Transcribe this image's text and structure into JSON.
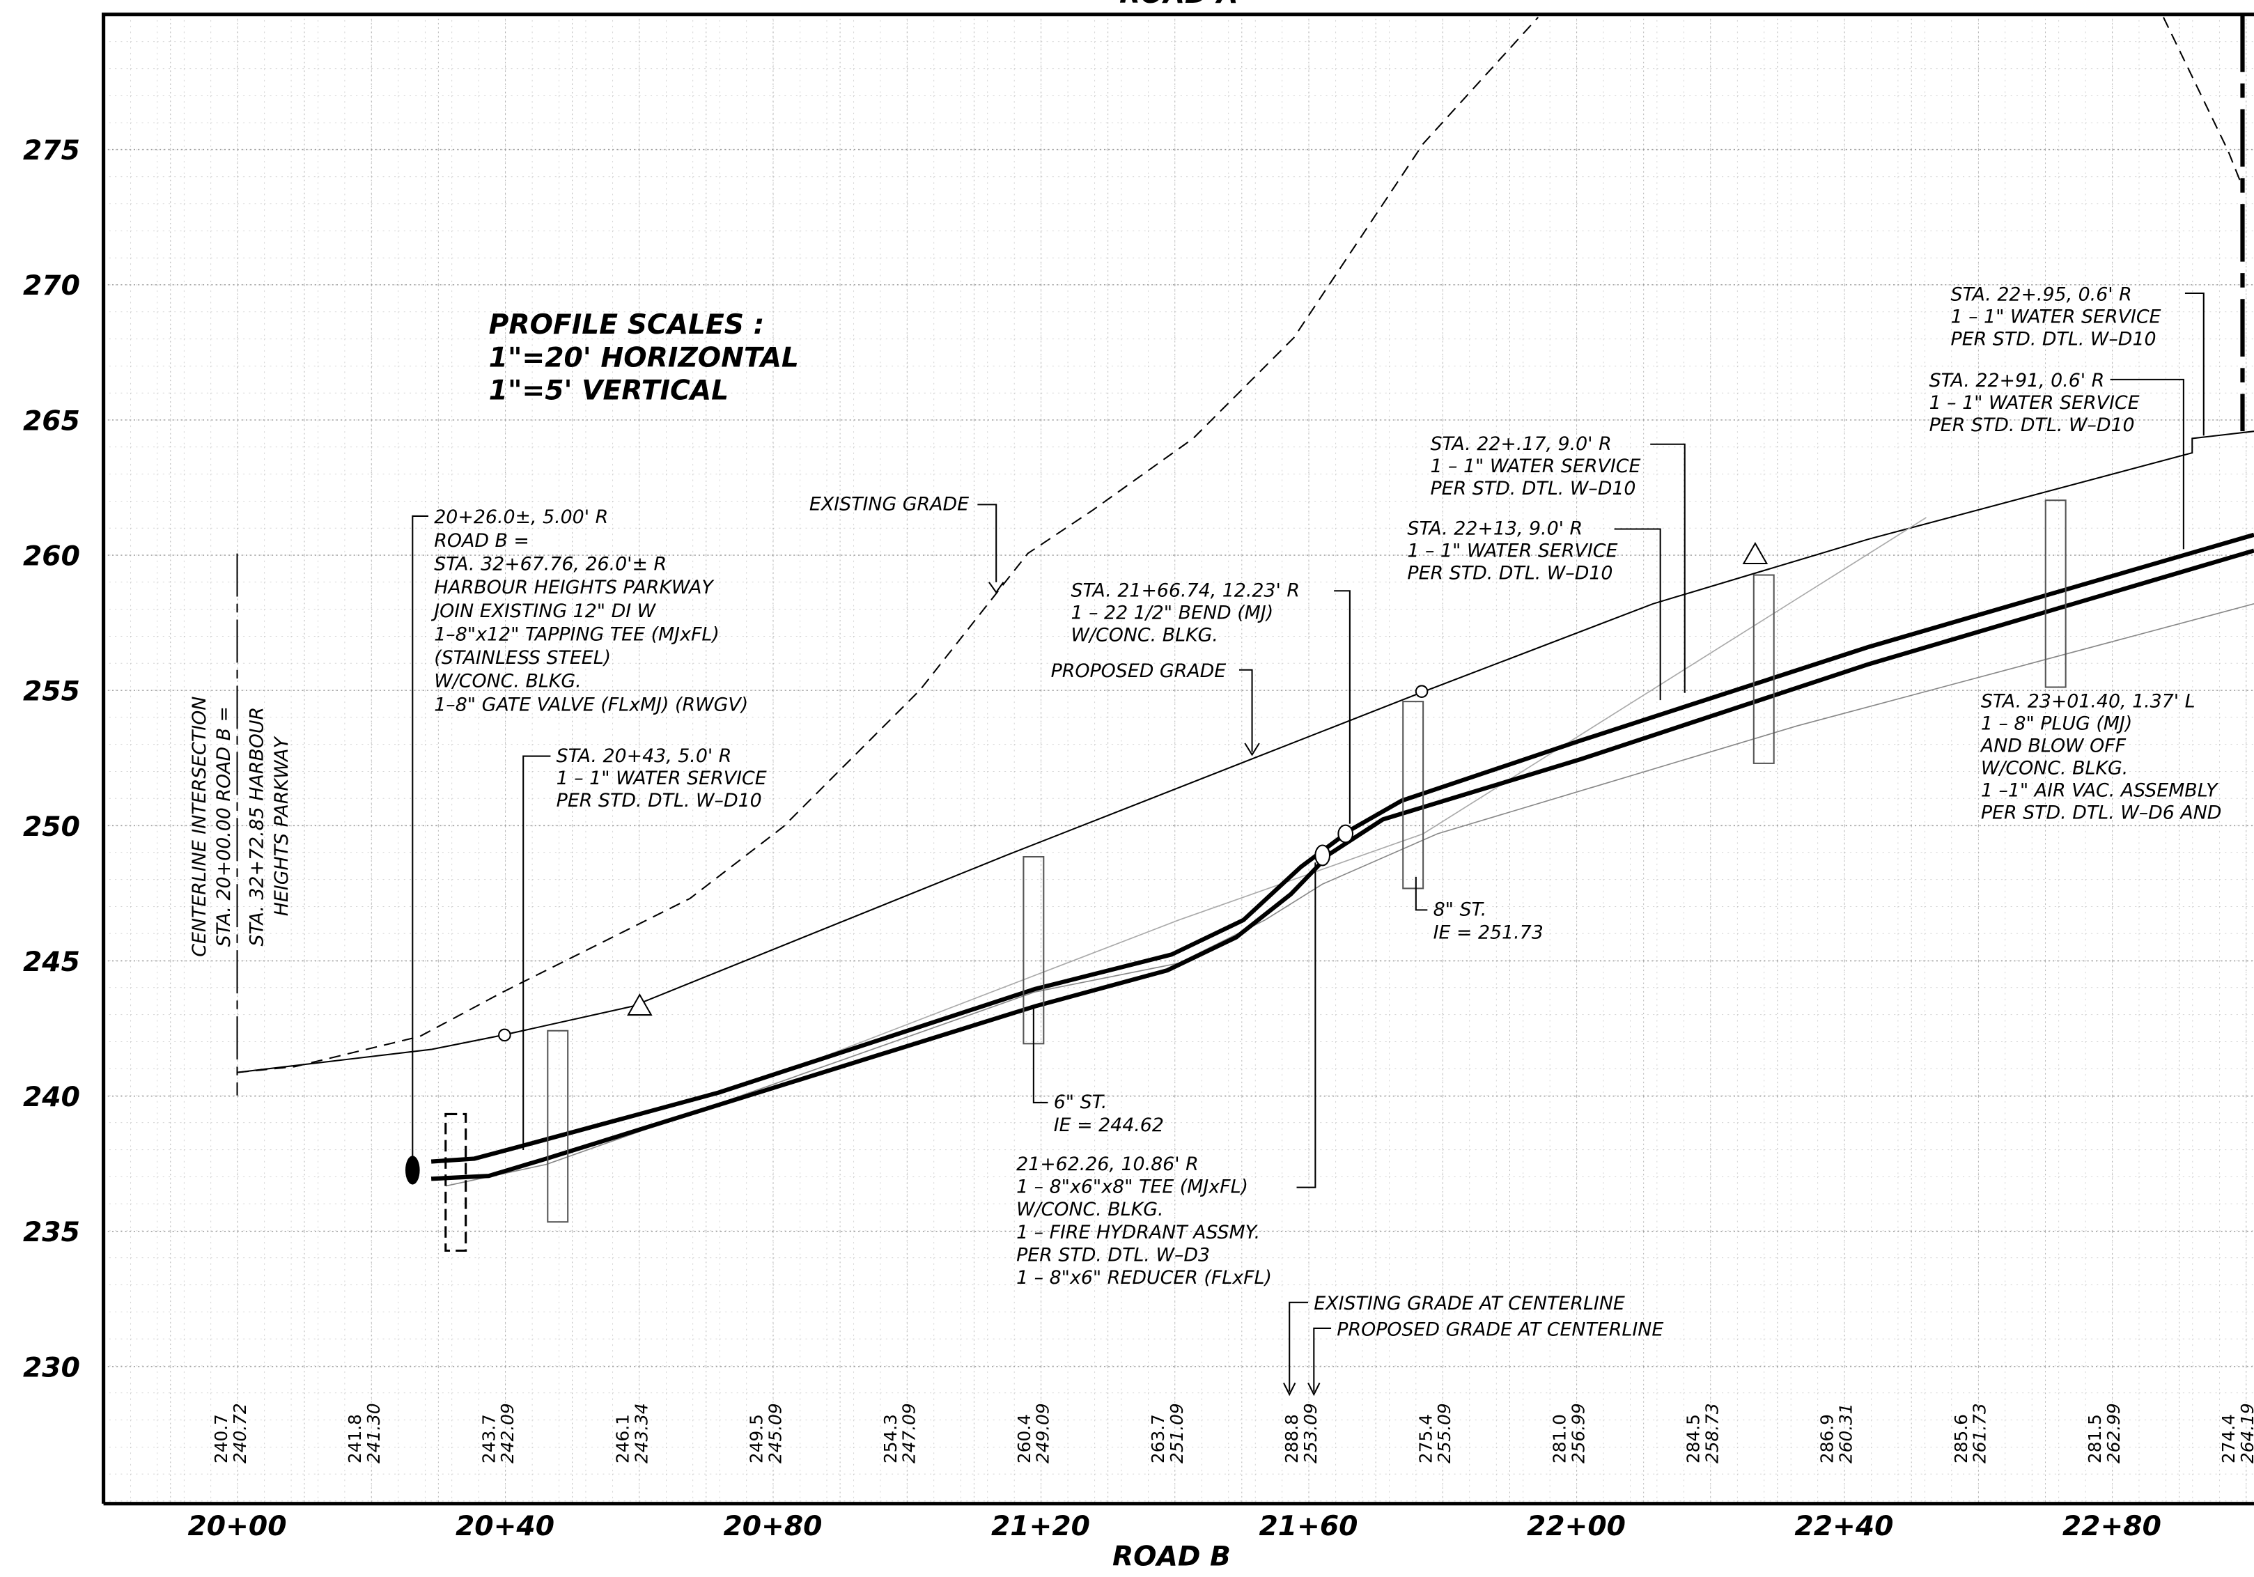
{
  "top_title": "ROAD A",
  "scale_note": [
    "PROFILE SCALES :",
    "1\"=20' HORIZONTAL",
    "1\"=5' VERTICAL"
  ],
  "elevations": [
    275,
    270,
    265,
    260,
    255,
    250,
    245,
    240,
    235,
    230
  ],
  "stations": [
    "20+00",
    "20+40",
    "20+80",
    "21+20",
    "21+60",
    "22+00",
    "22+40",
    "22+80"
  ],
  "x_axis_title": "ROAD B",
  "grade_readings": [
    {
      "existing": "240.7",
      "proposed": "240.72"
    },
    {
      "existing": "241.8",
      "proposed": "241.30"
    },
    {
      "existing": "243.7",
      "proposed": "242.09"
    },
    {
      "existing": "246.1",
      "proposed": "243.34"
    },
    {
      "existing": "249.5",
      "proposed": "245.09"
    },
    {
      "existing": "254.3",
      "proposed": "247.09"
    },
    {
      "existing": "260.4",
      "proposed": "249.09"
    },
    {
      "existing": "263.7",
      "proposed": "251.09"
    },
    {
      "existing": "288.8",
      "proposed": "253.09"
    },
    {
      "existing": "275.4",
      "proposed": "255.09"
    },
    {
      "existing": "281.0",
      "proposed": "256.99"
    },
    {
      "existing": "284.5",
      "proposed": "258.73"
    },
    {
      "existing": "286.9",
      "proposed": "260.31"
    },
    {
      "existing": "285.6",
      "proposed": "261.73"
    },
    {
      "existing": "281.5",
      "proposed": "262.99"
    },
    {
      "existing": "274.4",
      "proposed": "264.19"
    }
  ],
  "annotations": {
    "centerline": [
      "CENTERLINE INTERSECTION",
      "STA. 20+00.00 ROAD B =",
      "STA. 32+72.85 HARBOUR",
      "HEIGHTS PARKWAY"
    ],
    "tap": [
      "20+26.0±, 5.00' R",
      "ROAD B =",
      "STA. 32+67.76, 26.0'± R",
      "HARBOUR HEIGHTS PARKWAY",
      "JOIN EXISTING 12\" DI W",
      "1–8\"x12\" TAPPING TEE (MJxFL)",
      "(STAINLESS STEEL)",
      "W/CONC. BLKG.",
      "1–8\" GATE VALVE (FLxMJ) (RWGV)"
    ],
    "service_2043": [
      "STA. 20+43, 5.0' R",
      "1 – 1\" WATER SERVICE",
      "PER STD. DTL. W–D10"
    ],
    "existing_grade": "EXISTING GRADE",
    "proposed_grade": "PROPOSED GRADE",
    "bend": [
      "STA. 21+66.74, 12.23' R",
      "1 – 22 1/2\" BEND (MJ)",
      "W/CONC. BLKG."
    ],
    "service_2217": [
      "STA. 22+.17, 9.0' R",
      "1 – 1\" WATER SERVICE",
      "PER STD. DTL. W–D10"
    ],
    "service_2213": [
      "STA. 22+13, 9.0' R",
      "1 – 1\" WATER SERVICE",
      "PER STD. DTL. W–D10"
    ],
    "service_2295": [
      "STA. 22+.95, 0.6' R",
      "1 – 1\" WATER SERVICE",
      "PER STD. DTL. W–D10"
    ],
    "service_2291": [
      "STA. 22+91, 0.6' R",
      "1 – 1\" WATER SERVICE",
      "PER STD. DTL. W–D10"
    ],
    "plug": [
      "STA. 23+01.40, 1.37' L",
      "1 – 8\" PLUG (MJ)",
      "AND BLOW OFF",
      "W/CONC. BLKG.",
      "1 –1\" AIR VAC. ASSEMBLY",
      "PER STD. DTL. W–D6 AND"
    ],
    "st8": [
      "8\" ST.",
      "IE = 251.73"
    ],
    "st6": [
      "6\" ST.",
      "IE = 244.62"
    ],
    "tee": [
      "21+62.26, 10.86' R",
      "1 – 8\"x6\"x8\" TEE (MJxFL)",
      "W/CONC. BLKG.",
      "1 – FIRE HYDRANT ASSMY.",
      "PER STD. DTL. W–D3",
      "1 – 8\"x6\" REDUCER (FLxFL)"
    ],
    "existing_cl": "EXISTING GRADE AT CENTERLINE",
    "proposed_cl": "PROPOSED GRADE AT CENTERLINE"
  }
}
